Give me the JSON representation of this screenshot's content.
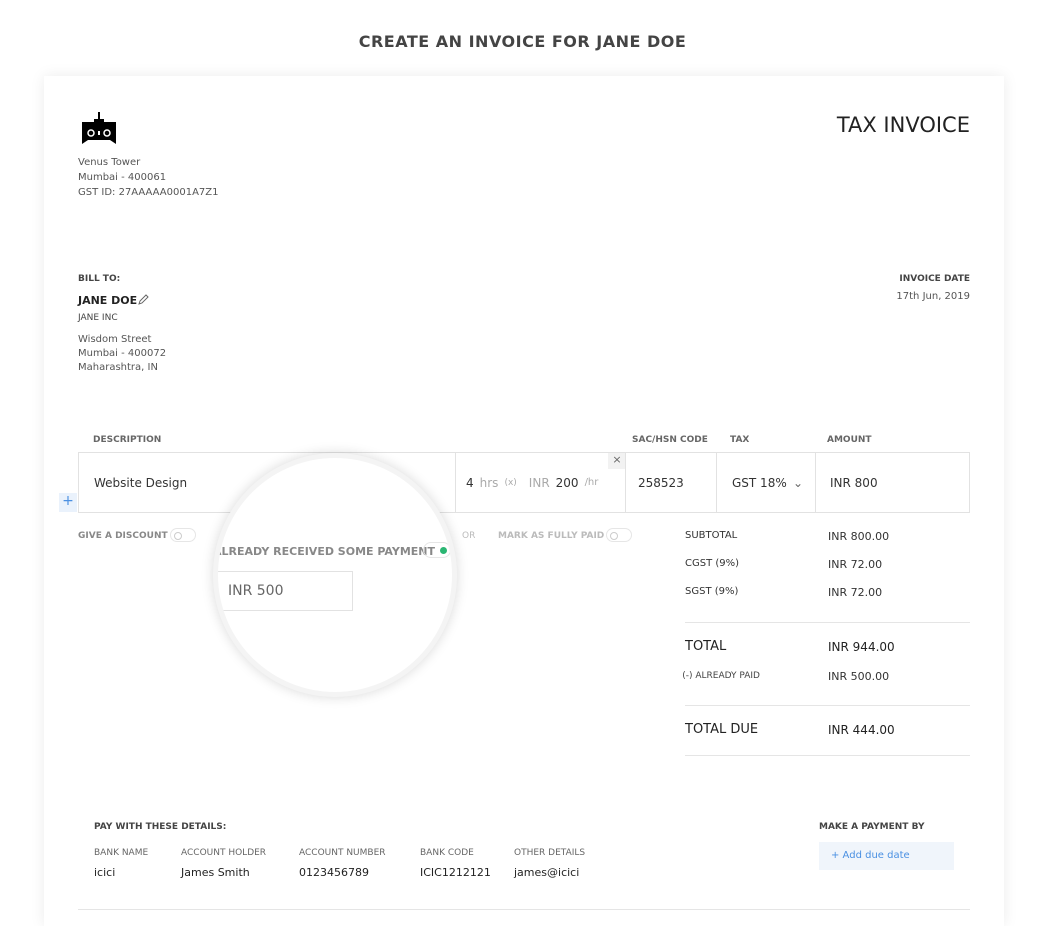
{
  "page_title": "CREATE AN INVOICE FOR JANE DOE",
  "invoice_heading": "TAX INVOICE",
  "company": {
    "address1": "Venus Tower",
    "address2": "Mumbai - 400061",
    "gst": "GST ID: 27AAAAA0001A7Z1"
  },
  "bill_to": {
    "label": "BILL TO:",
    "name": "JANE DOE",
    "company": "JANE INC",
    "street": "Wisdom Street",
    "city": "Mumbai - 400072",
    "state": "Maharashtra, IN"
  },
  "invoice_date": {
    "label": "INVOICE DATE",
    "value": "17th Jun, 2019"
  },
  "table": {
    "headers": {
      "description": "DESCRIPTION",
      "sac": "SAC/HSN CODE",
      "tax": "TAX",
      "amount": "AMOUNT"
    },
    "item": {
      "description": "Website Design",
      "qty": "4",
      "qty_unit": "hrs",
      "times": "(x)",
      "currency": "INR",
      "rate": "200",
      "rate_unit": "/hr",
      "sac": "258523",
      "tax": "GST 18%",
      "amount": "INR  800"
    }
  },
  "options": {
    "discount": "GIVE A DISCOUNT",
    "or": "OR",
    "fully_paid": "MARK AS FULLY PAID",
    "partial": "ALREADY RECEIVED SOME PAYMENT",
    "partial_value": "INR 500"
  },
  "summary": {
    "subtotal_label": "SUBTOTAL",
    "subtotal": "INR 800.00",
    "cgst_label": "CGST (9%)",
    "cgst": "INR 72.00",
    "sgst_label": "SGST (9%)",
    "sgst": "INR 72.00",
    "total_label": "TOTAL",
    "total": "INR 944.00",
    "paid_label": "(-) ALREADY PAID",
    "paid": "INR 500.00",
    "due_label": "TOTAL DUE",
    "due": "INR 444.00"
  },
  "payment": {
    "heading": "PAY WITH THESE DETAILS:",
    "columns": [
      {
        "label": "BANK NAME",
        "value": "icici"
      },
      {
        "label": "ACCOUNT HOLDER",
        "value": "James Smith"
      },
      {
        "label": "ACCOUNT NUMBER",
        "value": "0123456789"
      },
      {
        "label": "BANK CODE",
        "value": "ICIC1212121"
      },
      {
        "label": "OTHER DETAILS",
        "value": "james@icici"
      }
    ],
    "make_payment_label": "MAKE A PAYMENT BY",
    "add_due_date": "+ Add due date"
  },
  "colors": {
    "toggle_on": "#2bb673",
    "link": "#4a90e2"
  }
}
